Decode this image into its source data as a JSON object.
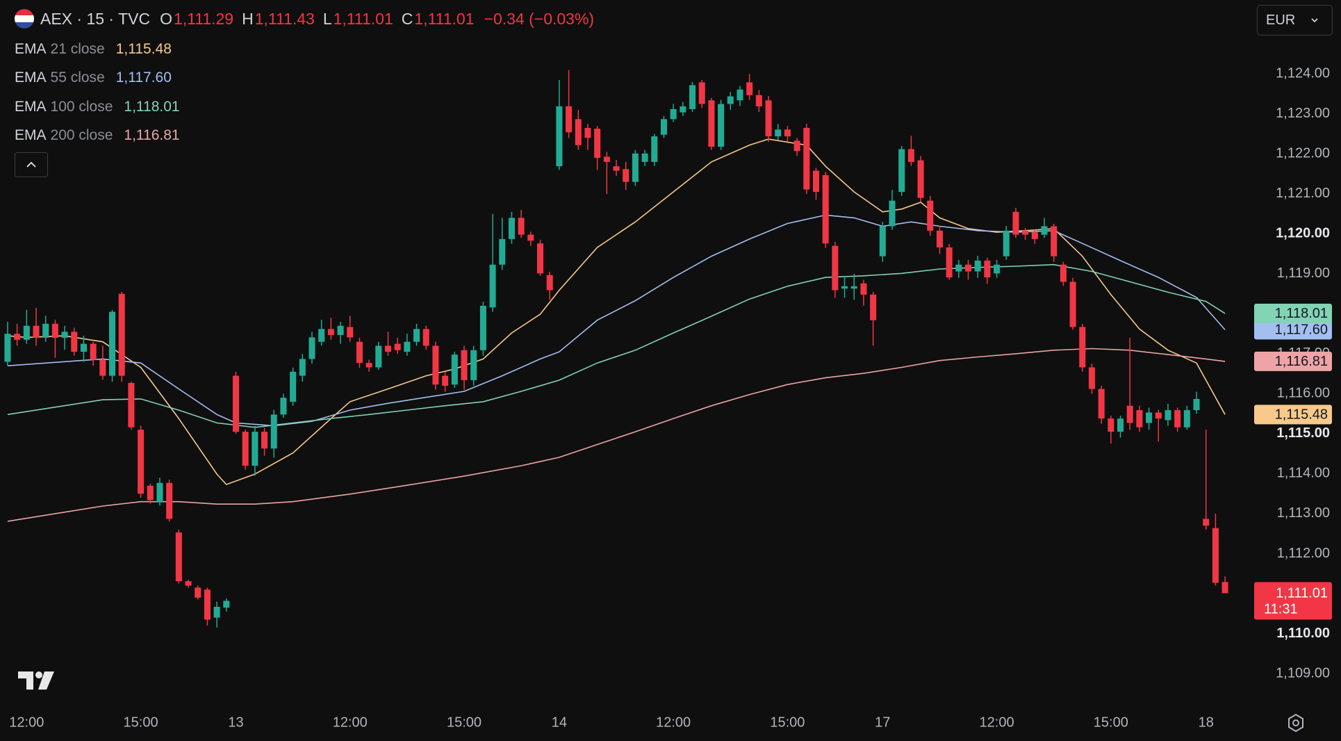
{
  "header": {
    "symbol": "AEX · 15 · TVC",
    "ohlc": [
      {
        "key": "O",
        "value": "1,111.29"
      },
      {
        "key": "H",
        "value": "1,111.43"
      },
      {
        "key": "L",
        "value": "1,111.01"
      },
      {
        "key": "C",
        "value": "1,111.01"
      }
    ],
    "change": "−0.34 (−0.03%)",
    "currency": "EUR"
  },
  "chart_data": {
    "type": "candlestick",
    "up_color": "#22ab94",
    "down_color": "#f23645",
    "grid": false,
    "xlim": [
      -0.8,
      129.6
    ],
    "ylim": [
      1108.2,
      1125.85
    ],
    "yticks": [
      {
        "value": 1109,
        "label": "1,109.00"
      },
      {
        "value": 1110,
        "label": "1,110.00"
      },
      {
        "value": 1111,
        "label": "1,111.00"
      },
      {
        "value": 1112,
        "label": "1,112.00"
      },
      {
        "value": 1113,
        "label": "1,113.00"
      },
      {
        "value": 1114,
        "label": "1,114.00"
      },
      {
        "value": 1115,
        "label": "1,115.00"
      },
      {
        "value": 1116,
        "label": "1,116.00"
      },
      {
        "value": 1117,
        "label": "1,117.00"
      },
      {
        "value": 1118,
        "label": "1,118.00"
      },
      {
        "value": 1119,
        "label": "1,119.00"
      },
      {
        "value": 1120,
        "label": "1,120.00"
      },
      {
        "value": 1121,
        "label": "1,121.00"
      },
      {
        "value": 1122,
        "label": "1,122.00"
      },
      {
        "value": 1123,
        "label": "1,123.00"
      },
      {
        "value": 1124,
        "label": "1,124.00"
      }
    ],
    "xticks": [
      {
        "value": 2,
        "label": "12:00"
      },
      {
        "value": 14,
        "label": "15:00"
      },
      {
        "value": 24,
        "label": "13"
      },
      {
        "value": 36,
        "label": "12:00"
      },
      {
        "value": 48,
        "label": "15:00"
      },
      {
        "value": 58,
        "label": "14"
      },
      {
        "value": 70,
        "label": "12:00"
      },
      {
        "value": 82,
        "label": "15:00"
      },
      {
        "value": 92,
        "label": "17"
      },
      {
        "value": 104,
        "label": "12:00"
      },
      {
        "value": 116,
        "label": "15:00"
      },
      {
        "value": 126,
        "label": "18"
      }
    ],
    "open": [
      1116.8,
      1117.5,
      1117.35,
      1117.7,
      1117.4,
      1117.75,
      1117.4,
      1117.55,
      1117.05,
      1117.25,
      1116.85,
      1116.45,
      1118.5,
      1116.27,
      1115.1,
      1113.7,
      1113.28,
      1113.77,
      1112.53,
      1111.31,
      1111.15,
      1111.1,
      1110.4,
      1110.65,
      1116.45,
      1115.05,
      1114.2,
      1115.05,
      1114.63,
      1115.48,
      1115.8,
      1116.45,
      1116.87,
      1117.3,
      1117.62,
      1117.47,
      1117.67,
      1117.3,
      1116.77,
      1116.66,
      1117.2,
      1117.25,
      1117.05,
      1117.3,
      1117.62,
      1117.2,
      1116.45,
      1116.23,
      1117.09,
      1116.34,
      1117.09,
      1118.16,
      1119.23,
      1119.87,
      1120.4,
      1119.98,
      1119.76,
      1118.97,
      1121.69,
      1123.19,
      1122.87,
      1122.65,
      1122.63,
      1121.93,
      1121.69,
      1121.62,
      1121.3,
      1121.8,
      1121.8,
      1122.48,
      1122.87,
      1123.04,
      1123.12,
      1123.79,
      1123.34,
      1122.18,
      1123.25,
      1123.34,
      1123.79,
      1123.47,
      1123.34,
      1122.44,
      1122.61,
      1122.33,
      1122.65,
      1121.58,
      1121.47,
      1119.7,
      1118.63,
      1118.63,
      1118.76,
      1118.48,
      1119.44,
      1120.19,
      1121.05,
      1122.12,
      1121.84,
      1120.83,
      1120.08,
      1119.66,
      1119.06,
      1119.23,
      1119.06,
      1119.33,
      1119.01,
      1119.44,
      1120.55,
      1120.08,
      1120.04,
      1119.98,
      1120.19,
      1119.23,
      1118.8,
      1117.67,
      1116.66,
      1116.12,
      1115.38,
      1115.05,
      1115.7,
      1115.59,
      1115.27,
      1115.53,
      1115.34,
      1115.59,
      1115.16,
      1115.59,
      1112.87,
      1112.64,
      1111.29
    ],
    "high": [
      1117.8,
      1117.75,
      1118.1,
      1118.15,
      1117.95,
      1117.85,
      1117.7,
      1117.65,
      1117.45,
      1117.3,
      1117.2,
      1118.1,
      1118.55,
      1116.3,
      1115.2,
      1113.75,
      1113.9,
      1113.85,
      1112.6,
      1111.35,
      1111.2,
      1111.15,
      1110.8,
      1110.88,
      1116.55,
      1115.1,
      1115.2,
      1115.15,
      1115.6,
      1116.0,
      1116.65,
      1117.0,
      1117.55,
      1117.85,
      1117.9,
      1117.8,
      1117.95,
      1117.4,
      1116.85,
      1117.3,
      1117.55,
      1117.4,
      1117.5,
      1117.75,
      1117.7,
      1117.3,
      1116.55,
      1117.05,
      1117.2,
      1117.2,
      1118.3,
      1120.5,
      1120.4,
      1120.55,
      1120.6,
      1120.05,
      1119.85,
      1119.05,
      1123.85,
      1124.1,
      1123.1,
      1122.75,
      1122.7,
      1122.05,
      1121.85,
      1121.8,
      1122.1,
      1122.1,
      1122.5,
      1122.95,
      1123.25,
      1123.3,
      1123.8,
      1123.85,
      1123.4,
      1123.35,
      1123.55,
      1123.7,
      1124.0,
      1123.6,
      1123.45,
      1122.75,
      1122.7,
      1122.4,
      1122.75,
      1121.65,
      1121.55,
      1119.8,
      1118.95,
      1119.0,
      1118.85,
      1118.55,
      1120.3,
      1121.1,
      1122.2,
      1122.45,
      1121.95,
      1120.95,
      1120.2,
      1119.75,
      1119.35,
      1119.35,
      1119.45,
      1119.4,
      1119.35,
      1120.2,
      1120.65,
      1120.15,
      1120.1,
      1120.4,
      1120.25,
      1119.3,
      1118.9,
      1117.75,
      1116.75,
      1116.2,
      1115.45,
      1115.45,
      1117.4,
      1115.7,
      1115.65,
      1115.6,
      1115.75,
      1115.65,
      1115.7,
      1116.05,
      1115.1,
      1113.0,
      1111.43
    ],
    "low": [
      1116.7,
      1117.2,
      1117.25,
      1117.2,
      1117.3,
      1116.9,
      1117.1,
      1116.95,
      1116.8,
      1116.7,
      1116.35,
      1116.3,
      1116.3,
      1115.1,
      1113.4,
      1113.25,
      1113.2,
      1112.8,
      1111.25,
      1111.15,
      1110.85,
      1110.2,
      1110.15,
      1110.55,
      1115.0,
      1114.1,
      1113.95,
      1114.45,
      1114.4,
      1115.4,
      1115.7,
      1116.3,
      1116.75,
      1117.2,
      1117.35,
      1117.25,
      1117.3,
      1116.65,
      1116.55,
      1116.6,
      1116.95,
      1117.0,
      1116.95,
      1117.2,
      1117.1,
      1116.1,
      1116.05,
      1116.15,
      1116.1,
      1116.2,
      1116.95,
      1118.05,
      1119.1,
      1119.75,
      1119.9,
      1119.7,
      1118.95,
      1118.35,
      1121.6,
      1122.4,
      1122.1,
      1122.1,
      1121.6,
      1121.0,
      1121.45,
      1121.1,
      1121.2,
      1121.7,
      1121.7,
      1122.4,
      1122.8,
      1122.95,
      1123.05,
      1123.15,
      1122.1,
      1122.1,
      1123.1,
      1123.2,
      1123.35,
      1123.05,
      1122.3,
      1122.35,
      1122.3,
      1121.95,
      1121.0,
      1120.85,
      1119.65,
      1118.4,
      1118.4,
      1118.35,
      1118.2,
      1117.2,
      1119.3,
      1120.1,
      1120.95,
      1121.7,
      1120.8,
      1119.95,
      1119.5,
      1118.85,
      1118.9,
      1118.85,
      1118.9,
      1118.75,
      1118.9,
      1119.35,
      1119.9,
      1119.85,
      1119.75,
      1119.9,
      1119.3,
      1118.7,
      1117.6,
      1116.55,
      1116.0,
      1115.25,
      1114.75,
      1114.9,
      1115.1,
      1115.05,
      1115.1,
      1114.8,
      1115.2,
      1115.05,
      1115.1,
      1115.5,
      1112.6,
      1111.2,
      1111.01
    ],
    "close": [
      1117.5,
      1117.35,
      1117.7,
      1117.4,
      1117.75,
      1117.4,
      1117.55,
      1117.05,
      1117.25,
      1116.85,
      1116.45,
      1118.05,
      1116.45,
      1115.16,
      1113.5,
      1113.34,
      1113.77,
      1112.87,
      1111.31,
      1111.2,
      1110.9,
      1110.35,
      1110.67,
      1110.82,
      1115.05,
      1114.2,
      1115.05,
      1114.63,
      1115.48,
      1115.9,
      1116.55,
      1116.87,
      1117.41,
      1117.62,
      1117.47,
      1117.7,
      1117.41,
      1116.77,
      1116.66,
      1117.2,
      1117.05,
      1117.09,
      1117.3,
      1117.62,
      1117.2,
      1116.23,
      1116.2,
      1116.98,
      1116.34,
      1117.09,
      1118.2,
      1119.23,
      1119.87,
      1120.4,
      1119.98,
      1119.83,
      1119.01,
      1118.59,
      1123.19,
      1122.54,
      1122.22,
      1122.4,
      1121.9,
      1121.8,
      1121.58,
      1121.3,
      1122.01,
      1122.01,
      1122.44,
      1122.87,
      1123.12,
      1123.19,
      1123.72,
      1123.25,
      1122.18,
      1123.25,
      1123.44,
      1123.61,
      1123.47,
      1123.19,
      1122.44,
      1122.61,
      1122.44,
      1122.07,
      1121.11,
      1121.05,
      1119.76,
      1118.59,
      1118.69,
      1118.69,
      1118.48,
      1117.84,
      1120.19,
      1120.83,
      1122.12,
      1121.8,
      1120.9,
      1120.08,
      1119.66,
      1118.91,
      1119.23,
      1119.06,
      1119.33,
      1118.91,
      1119.23,
      1120.08,
      1119.98,
      1119.98,
      1119.87,
      1120.19,
      1119.44,
      1118.8,
      1117.67,
      1116.66,
      1116.12,
      1115.38,
      1115.05,
      1115.38,
      1115.27,
      1115.16,
      1115.53,
      1115.38,
      1115.59,
      1115.16,
      1115.59,
      1115.87,
      1112.7,
      1111.27,
      1111.01
    ],
    "last_price": {
      "label": "1,111.01",
      "countdown": "11:31"
    },
    "series": [
      {
        "name": "EMA",
        "params": "21 close",
        "color": "#f7c98a",
        "last_label": "1,115.48",
        "x": [
          0,
          2,
          6,
          10,
          14,
          18,
          22,
          23,
          26,
          30,
          34,
          36,
          40,
          44,
          47,
          50,
          53,
          56,
          58,
          62,
          66,
          70,
          74,
          78,
          80,
          84,
          86,
          89,
          92,
          94,
          96,
          98,
          101,
          104,
          107,
          110,
          113,
          116,
          119,
          122,
          125,
          128
        ],
        "values": [
          1117.45,
          1117.41,
          1117.45,
          1117.3,
          1116.66,
          1115.38,
          1113.99,
          1113.73,
          1113.99,
          1114.52,
          1115.38,
          1115.8,
          1116.12,
          1116.45,
          1116.62,
          1116.87,
          1117.52,
          1117.99,
          1118.59,
          1119.66,
          1120.3,
          1121.05,
          1121.8,
          1122.22,
          1122.37,
          1122.22,
          1121.69,
          1121.05,
          1120.55,
          1120.62,
          1120.79,
          1120.4,
          1120.13,
          1120.04,
          1120.08,
          1120.13,
          1119.44,
          1118.48,
          1117.62,
          1117.09,
          1116.77,
          1115.48
        ]
      },
      {
        "name": "EMA",
        "params": "55 close",
        "color": "#a3bff0",
        "last_label": "1,117.60",
        "x": [
          0,
          10,
          14,
          18,
          22,
          24,
          28,
          32,
          36,
          40,
          44,
          48,
          52,
          56,
          58,
          62,
          66,
          70,
          74,
          78,
          82,
          86,
          89,
          92,
          95,
          98,
          102,
          106,
          110,
          113,
          117,
          121,
          125,
          128
        ],
        "values": [
          1116.7,
          1116.87,
          1116.77,
          1116.12,
          1115.48,
          1115.27,
          1115.2,
          1115.31,
          1115.59,
          1115.76,
          1115.91,
          1116.06,
          1116.45,
          1116.87,
          1117.05,
          1117.84,
          1118.33,
          1118.91,
          1119.44,
          1119.87,
          1120.26,
          1120.47,
          1120.4,
          1120.19,
          1120.3,
          1120.19,
          1120.08,
          1120.04,
          1120.08,
          1119.76,
          1119.33,
          1118.91,
          1118.41,
          1117.6
        ]
      },
      {
        "name": "EMA",
        "params": "100 close",
        "color": "#83d3b5",
        "last_label": "1,118.01",
        "x": [
          0,
          10,
          14,
          18,
          22,
          26,
          30,
          34,
          38,
          42,
          46,
          50,
          54,
          58,
          62,
          66,
          70,
          74,
          78,
          82,
          86,
          90,
          94,
          98,
          102,
          106,
          110,
          114,
          118,
          122,
          126,
          128
        ],
        "values": [
          1115.48,
          1115.85,
          1115.87,
          1115.59,
          1115.27,
          1115.16,
          1115.27,
          1115.38,
          1115.48,
          1115.59,
          1115.7,
          1115.8,
          1116.06,
          1116.34,
          1116.77,
          1117.09,
          1117.52,
          1117.94,
          1118.37,
          1118.69,
          1118.91,
          1118.95,
          1119.01,
          1119.12,
          1119.16,
          1119.19,
          1119.23,
          1119.06,
          1118.8,
          1118.54,
          1118.31,
          1118.01
        ]
      },
      {
        "name": "EMA",
        "params": "200 close",
        "color": "#eea4a6",
        "last_label": "1,116.81",
        "x": [
          0,
          10,
          14,
          18,
          22,
          26,
          30,
          36,
          42,
          48,
          54,
          58,
          62,
          66,
          70,
          74,
          78,
          82,
          86,
          90,
          94,
          98,
          102,
          106,
          110,
          114,
          118,
          122,
          126,
          128
        ],
        "values": [
          1112.81,
          1113.19,
          1113.3,
          1113.3,
          1113.24,
          1113.24,
          1113.3,
          1113.49,
          1113.71,
          1113.94,
          1114.2,
          1114.41,
          1114.73,
          1115.05,
          1115.38,
          1115.7,
          1115.98,
          1116.23,
          1116.4,
          1116.51,
          1116.66,
          1116.83,
          1116.92,
          1117.0,
          1117.09,
          1117.13,
          1117.09,
          1116.98,
          1116.87,
          1116.81
        ]
      }
    ]
  }
}
